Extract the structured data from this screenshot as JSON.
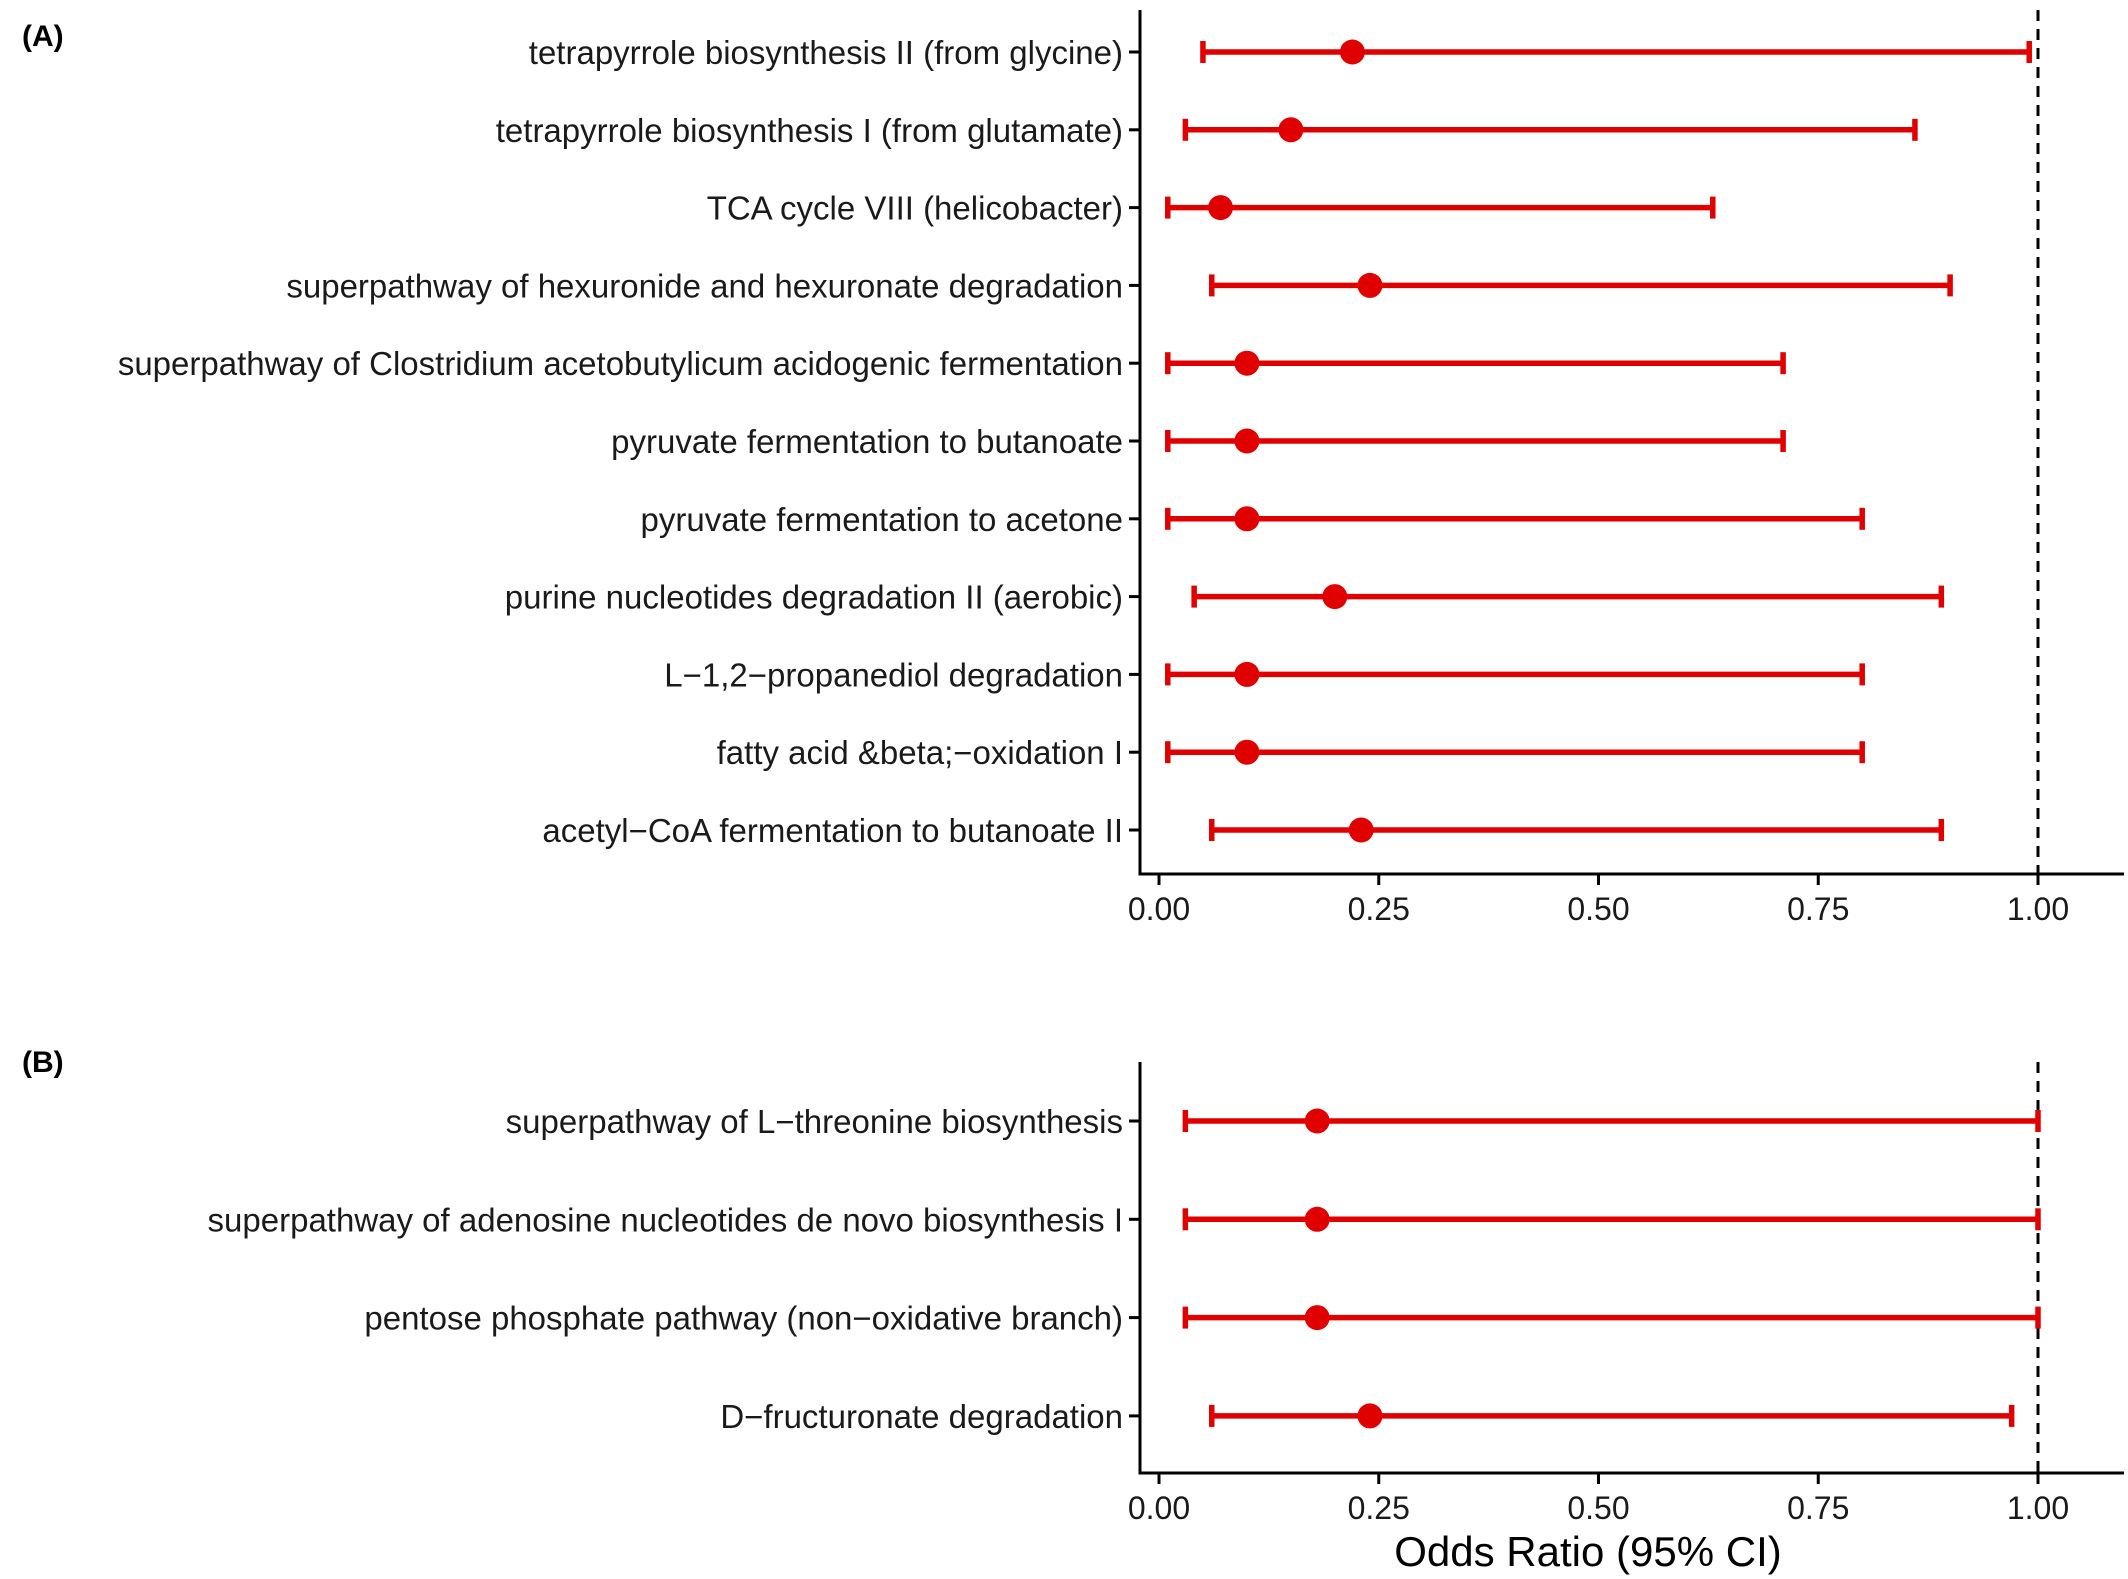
{
  "chart_data": [
    {
      "type": "forest",
      "panel_label": "(A)",
      "title": "",
      "xlabel": "",
      "ylabel": "",
      "xlim": [
        0,
        1.05
      ],
      "xticks": [
        0.0,
        0.25,
        0.5,
        0.75,
        1.0
      ],
      "xtick_labels": [
        "0.00",
        "0.25",
        "0.50",
        "0.75",
        "1.00"
      ],
      "reference_line": 1.0,
      "grid": false,
      "color": "#e00000",
      "rows": [
        {
          "label": "tetrapyrrole biosynthesis II (from glycine)",
          "or": 0.22,
          "lower": 0.05,
          "upper": 0.99
        },
        {
          "label": "tetrapyrrole biosynthesis I (from glutamate)",
          "or": 0.15,
          "lower": 0.03,
          "upper": 0.86
        },
        {
          "label": "TCA cycle VIII (helicobacter)",
          "or": 0.07,
          "lower": 0.01,
          "upper": 0.63
        },
        {
          "label": "superpathway of hexuronide and hexuronate degradation",
          "or": 0.24,
          "lower": 0.06,
          "upper": 0.9
        },
        {
          "label": "superpathway of Clostridium acetobutylicum acidogenic fermentation",
          "or": 0.1,
          "lower": 0.01,
          "upper": 0.71
        },
        {
          "label": "pyruvate fermentation to butanoate",
          "or": 0.1,
          "lower": 0.01,
          "upper": 0.71
        },
        {
          "label": "pyruvate fermentation to acetone",
          "or": 0.1,
          "lower": 0.01,
          "upper": 0.8
        },
        {
          "label": "purine nucleotides degradation II (aerobic)",
          "or": 0.2,
          "lower": 0.04,
          "upper": 0.89
        },
        {
          "label": "L−1,2−propanediol degradation",
          "or": 0.1,
          "lower": 0.01,
          "upper": 0.8
        },
        {
          "label": "fatty acid &beta;−oxidation I",
          "or": 0.1,
          "lower": 0.01,
          "upper": 0.8
        },
        {
          "label": "acetyl−CoA fermentation to butanoate II",
          "or": 0.23,
          "lower": 0.06,
          "upper": 0.89
        }
      ]
    },
    {
      "type": "forest",
      "panel_label": "(B)",
      "title": "",
      "xlabel": "Odds Ratio (95% CI)",
      "ylabel": "",
      "xlim": [
        0,
        1.05
      ],
      "xticks": [
        0.0,
        0.25,
        0.5,
        0.75,
        1.0
      ],
      "xtick_labels": [
        "0.00",
        "0.25",
        "0.50",
        "0.75",
        "1.00"
      ],
      "reference_line": 1.0,
      "grid": false,
      "color": "#e00000",
      "rows": [
        {
          "label": "superpathway of L−threonine biosynthesis",
          "or": 0.18,
          "lower": 0.03,
          "upper": 1.0
        },
        {
          "label": "superpathway of adenosine nucleotides de novo biosynthesis I",
          "or": 0.18,
          "lower": 0.03,
          "upper": 1.0
        },
        {
          "label": "pentose phosphate pathway (non−oxidative branch)",
          "or": 0.18,
          "lower": 0.03,
          "upper": 1.0
        },
        {
          "label": "D−fructuronate degradation",
          "or": 0.24,
          "lower": 0.06,
          "upper": 0.97
        }
      ]
    }
  ]
}
